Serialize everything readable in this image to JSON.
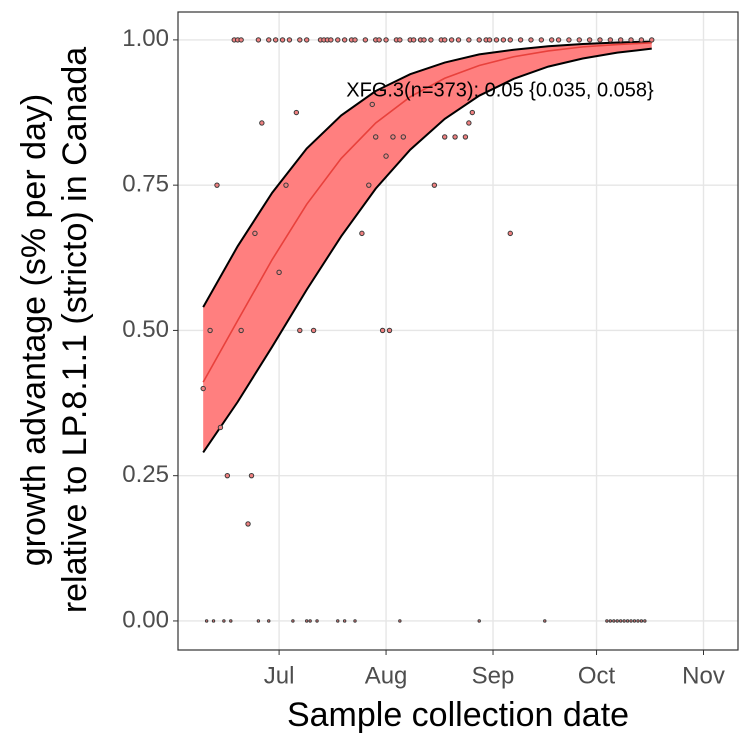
{
  "chart_data": {
    "type": "scatter",
    "x_label": "Sample collection date",
    "y_label": [
      "growth advantage (s% per day)",
      "relative to LP.8.1.1 (stricto) in Canada"
    ],
    "annotation": "XFG.3(n=373): 0.05 {0.035, 0.058}",
    "xlim": [
      152.7,
      315
    ],
    "ylim": [
      -0.05,
      1.048
    ],
    "xticks": [
      {
        "value": 182,
        "label": "Jul"
      },
      {
        "value": 213,
        "label": "Aug"
      },
      {
        "value": 244,
        "label": "Sep"
      },
      {
        "value": 274,
        "label": "Oct"
      },
      {
        "value": 305,
        "label": "Nov"
      }
    ],
    "yticks": [
      {
        "value": 0,
        "label": "0.00"
      },
      {
        "value": 0.25,
        "label": "0.25"
      },
      {
        "value": 0.5,
        "label": "0.50"
      },
      {
        "value": 0.75,
        "label": "0.75"
      },
      {
        "value": 1,
        "label": "1.00"
      }
    ],
    "grid": true,
    "points": {
      "fill": "#f08080",
      "stroke": "#3a3a3a",
      "x": [
        169,
        170,
        171,
        176,
        179,
        181,
        183,
        185,
        188,
        190,
        194,
        195,
        196,
        197,
        199,
        201,
        203,
        204,
        207,
        210,
        211,
        213,
        216,
        217,
        220,
        221,
        223,
        224,
        226,
        229,
        230,
        232,
        234,
        237,
        240,
        242,
        243,
        245,
        247,
        249,
        252,
        255,
        258,
        261,
        263,
        266,
        269,
        272,
        275,
        278,
        281,
        284,
        287,
        290,
        160,
        162,
        164,
        165,
        167,
        171,
        173,
        174,
        175,
        177,
        182,
        184,
        187,
        188,
        192,
        206,
        208,
        209,
        210,
        212,
        213,
        214,
        215,
        218,
        227,
        230,
        233,
        236,
        237,
        238,
        249,
        161,
        163,
        166,
        168,
        176,
        179,
        186,
        190,
        191,
        193,
        199,
        201,
        204,
        217,
        240,
        259,
        277,
        278,
        279,
        280,
        281,
        282,
        283,
        284,
        285,
        286,
        287,
        288
      ],
      "y": [
        1,
        1,
        1,
        1,
        1,
        1,
        1,
        1,
        1,
        1,
        1,
        1,
        1,
        1,
        1,
        1,
        1,
        1,
        1,
        1,
        1,
        1,
        1,
        1,
        1,
        1,
        1,
        1,
        1,
        1,
        1,
        1,
        1,
        1,
        1,
        1,
        1,
        1,
        1,
        1,
        1,
        1,
        1,
        1,
        1,
        1,
        1,
        1,
        1,
        1,
        1,
        1,
        1,
        1,
        0.4,
        0.5,
        0.75,
        0.333,
        0.25,
        0.5,
        0.167,
        0.25,
        0.667,
        0.857,
        0.6,
        0.75,
        0.875,
        0.5,
        0.5,
        0.667,
        0.75,
        0.889,
        0.833,
        0.5,
        0.8,
        0.5,
        0.833,
        0.833,
        0.75,
        0.833,
        0.833,
        0.833,
        0.857,
        0.875,
        0.667,
        0,
        0,
        0,
        0,
        0,
        0,
        0,
        0,
        0,
        0,
        0,
        0,
        0,
        0,
        0,
        0,
        0,
        0,
        0,
        0,
        0,
        0,
        0,
        0,
        0,
        0,
        0,
        0
      ]
    },
    "fit": {
      "color": "#e8413c",
      "band_color": "#ff7f7f",
      "x": [
        160,
        170,
        180,
        190,
        200,
        210,
        220,
        230,
        240,
        250,
        260,
        270,
        280,
        290
      ],
      "values": [
        0.411,
        0.517,
        0.622,
        0.717,
        0.796,
        0.857,
        0.902,
        0.934,
        0.956,
        0.971,
        0.981,
        0.988,
        0.992,
        0.995
      ],
      "lower": [
        0.29,
        0.377,
        0.472,
        0.57,
        0.662,
        0.744,
        0.811,
        0.864,
        0.904,
        0.933,
        0.954,
        0.968,
        0.978,
        0.985
      ],
      "upper": [
        0.54,
        0.645,
        0.737,
        0.813,
        0.87,
        0.912,
        0.941,
        0.961,
        0.975,
        0.983,
        0.989,
        0.993,
        0.9955,
        0.997
      ]
    }
  }
}
